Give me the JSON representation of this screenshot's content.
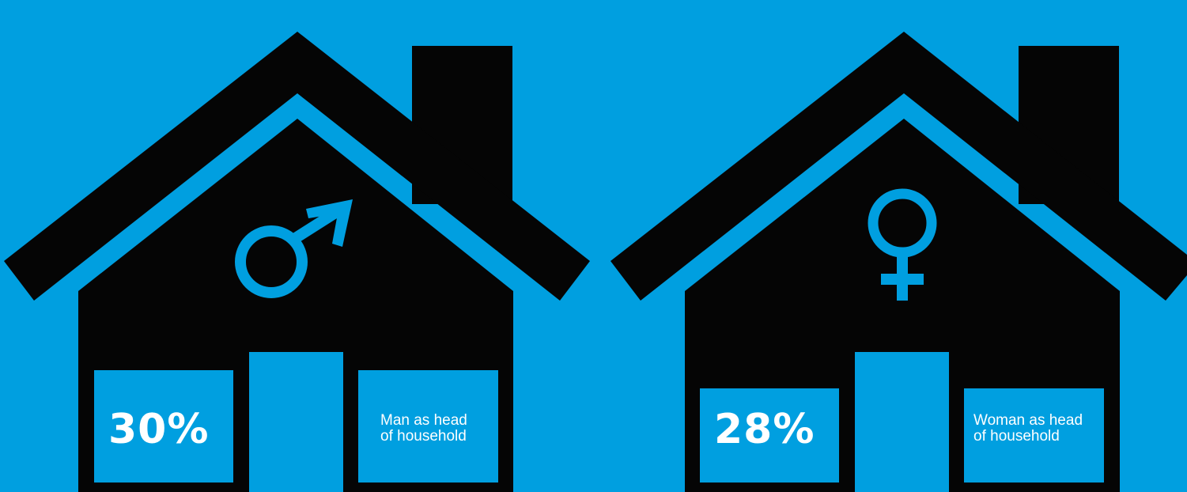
{
  "colors": {
    "background": "#009fe0",
    "house": "#050505",
    "text": "#ffffff"
  },
  "houses": [
    {
      "symbol_icon": "male-symbol-icon",
      "percentage": "30%",
      "label_line1": "Man as head",
      "label_line2": "of household"
    },
    {
      "symbol_icon": "female-symbol-icon",
      "percentage": "28%",
      "label_line1": "Woman as head",
      "label_line2": "of household"
    }
  ]
}
